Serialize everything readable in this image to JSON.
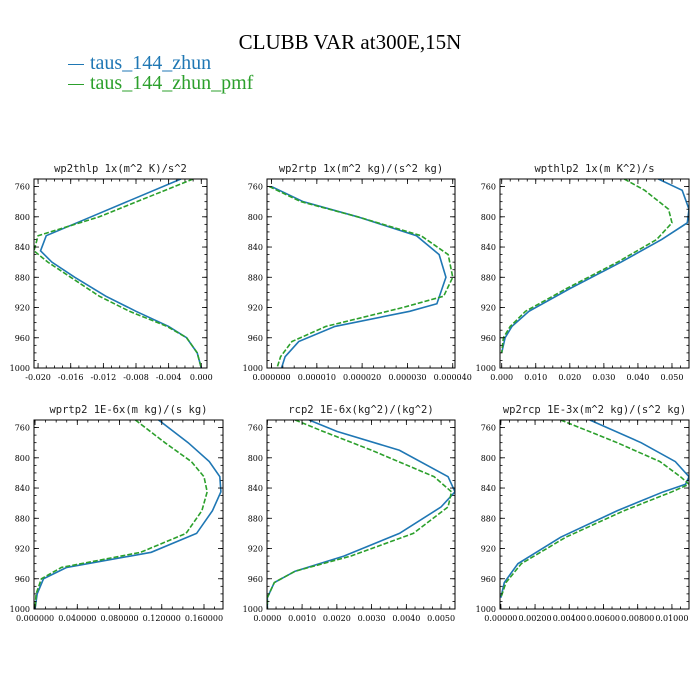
{
  "title": "CLUBB VAR at300E,15N",
  "legend": [
    {
      "name": "taus_144_zhun",
      "color": "#1f77b4"
    },
    {
      "name": "taus_144_zhun_pmf",
      "color": "#2ca02c"
    }
  ],
  "chart_data": [
    {
      "type": "line",
      "title": "wp2thlp  1x(m^2 K)/s^2",
      "xlim": [
        -0.0205,
        0.0007
      ],
      "xticks": [
        -0.02,
        -0.016,
        -0.012,
        -0.008,
        -0.004,
        0.0
      ],
      "xtick_labels": [
        "-0.020",
        "-0.016",
        "-0.012",
        "-0.008",
        "-0.004",
        "0.000"
      ],
      "ylim": [
        1000,
        750
      ],
      "yticks": [
        760,
        800,
        840,
        880,
        920,
        960,
        1000
      ],
      "series": [
        {
          "name": "taus_144_zhun",
          "x": [
            -0.0025,
            -0.0135,
            -0.019,
            -0.0197,
            -0.0183,
            -0.0155,
            -0.0117,
            -0.008,
            -0.004,
            -0.0018,
            -0.0005,
            0.0
          ],
          "y": [
            750,
            800,
            825,
            845,
            860,
            880,
            905,
            925,
            945,
            960,
            980,
            1000
          ]
        },
        {
          "name": "taus_144_zhun_pmf",
          "x": [
            -0.001,
            -0.0125,
            -0.02,
            -0.0205,
            -0.0188,
            -0.016,
            -0.0125,
            -0.0088,
            -0.0042,
            -0.0018,
            -0.0005,
            0.0
          ],
          "y": [
            750,
            800,
            825,
            845,
            860,
            880,
            905,
            925,
            945,
            960,
            980,
            1000
          ]
        }
      ]
    },
    {
      "type": "line",
      "title": "wp2rtp  1x(m^2 kg)/(s^2 kg)",
      "xlim": [
        -1e-06,
        4.05e-05
      ],
      "xticks": [
        0.0,
        1e-05,
        2e-05,
        3e-05,
        4e-05
      ],
      "xtick_labels": [
        "0.000000",
        "0.000010",
        "0.000020",
        "0.000030",
        "0.000040"
      ],
      "ylim": [
        1000,
        750
      ],
      "yticks": [
        760,
        800,
        840,
        880,
        920,
        960,
        1000
      ],
      "series": [
        {
          "name": "taus_144_zhun",
          "x": [
            0.0,
            7e-06,
            1.9e-05,
            3.2e-05,
            3.7e-05,
            3.85e-05,
            3.65e-05,
            3.05e-05,
            1.4e-05,
            6e-06,
            3e-06,
            2.2e-06
          ],
          "y": [
            760,
            780,
            800,
            825,
            850,
            880,
            915,
            925,
            945,
            965,
            985,
            1000
          ]
        },
        {
          "name": "taus_144_zhun_pmf",
          "x": [
            -5e-07,
            6.5e-06,
            1.9e-05,
            3.3e-05,
            3.9e-05,
            4e-05,
            3.8e-05,
            2.9e-05,
            1.2e-05,
            4.5e-06,
            2e-06,
            1.2e-06
          ],
          "y": [
            760,
            780,
            800,
            825,
            850,
            880,
            905,
            920,
            945,
            965,
            985,
            1000
          ]
        }
      ]
    },
    {
      "type": "line",
      "title": "wpthlp2  1x(m K^2)/s",
      "xlim": [
        -0.0005,
        0.055
      ],
      "xticks": [
        0.0,
        0.01,
        0.02,
        0.03,
        0.04,
        0.05
      ],
      "xtick_labels": [
        "0.000",
        "0.010",
        "0.020",
        "0.030",
        "0.040",
        "0.050"
      ],
      "ylim": [
        1000,
        750
      ],
      "yticks": [
        760,
        800,
        840,
        880,
        920,
        960,
        1000
      ],
      "series": [
        {
          "name": "taus_144_zhun",
          "x": [
            0.046,
            0.053,
            0.055,
            0.0545,
            0.047,
            0.035,
            0.02,
            0.008,
            0.003,
            0.001,
            0.0
          ],
          "y": [
            750,
            765,
            790,
            808,
            830,
            860,
            895,
            925,
            945,
            960,
            980
          ]
        },
        {
          "name": "taus_144_zhun_pmf",
          "x": [
            0.036,
            0.042,
            0.049,
            0.05,
            0.0455,
            0.034,
            0.019,
            0.007,
            0.0025,
            0.0005,
            0.0
          ],
          "y": [
            750,
            765,
            790,
            808,
            830,
            860,
            895,
            925,
            945,
            960,
            980
          ]
        }
      ]
    },
    {
      "type": "line",
      "title": "wprtp2  1E-6x(m kg)/(s kg)",
      "xlim": [
        -1e-06,
        0.000178
      ],
      "xticks": [
        0.0,
        4e-05,
        8e-05,
        0.00012,
        0.00016
      ],
      "xtick_labels": [
        "0.000000",
        "0.040000",
        "0.080000",
        "0.120000",
        "0.160000"
      ],
      "ylim": [
        1000,
        750
      ],
      "yticks": [
        760,
        800,
        840,
        880,
        920,
        960,
        1000
      ],
      "series": [
        {
          "name": "taus_144_zhun",
          "x": [
            0.000117,
            0.000145,
            0.000165,
            0.000175,
            0.000176,
            0.000168,
            0.000153,
            0.00011,
            3e-05,
            8e-06,
            2e-06,
            0.0
          ],
          "y": [
            750,
            780,
            805,
            825,
            845,
            870,
            900,
            925,
            945,
            960,
            980,
            1000
          ]
        },
        {
          "name": "taus_144_zhun_pmf",
          "x": [
            9.5e-05,
            0.000123,
            0.000148,
            0.00016,
            0.000163,
            0.000158,
            0.000143,
            0.0001,
            2.5e-05,
            6e-06,
            1e-06,
            0.0
          ],
          "y": [
            750,
            780,
            805,
            825,
            845,
            870,
            900,
            925,
            945,
            960,
            980,
            1000
          ]
        }
      ]
    },
    {
      "type": "line",
      "title": "rcp2  1E-6x(kg^2)/(kg^2)",
      "xlim": [
        -1e-05,
        0.0054
      ],
      "xticks": [
        0.0,
        0.001,
        0.002,
        0.003,
        0.004,
        0.005
      ],
      "xtick_labels": [
        "0.0000",
        "0.0010",
        "0.0020",
        "0.0030",
        "0.0040",
        "0.0050"
      ],
      "ylim": [
        1000,
        750
      ],
      "yticks": [
        760,
        800,
        840,
        880,
        920,
        960,
        1000
      ],
      "series": [
        {
          "name": "taus_144_zhun",
          "x": [
            0.0012,
            0.002,
            0.0038,
            0.0052,
            0.0054,
            0.005,
            0.0038,
            0.0022,
            0.0008,
            0.0002,
            0.0,
            0.0
          ],
          "y": [
            750,
            765,
            790,
            825,
            845,
            865,
            900,
            930,
            950,
            965,
            985,
            1000
          ]
        },
        {
          "name": "taus_144_zhun_pmf",
          "x": [
            0.0008,
            0.0016,
            0.003,
            0.0048,
            0.0053,
            0.0052,
            0.0042,
            0.0024,
            0.0008,
            0.0002,
            0.0,
            0.0
          ],
          "y": [
            750,
            765,
            790,
            825,
            845,
            865,
            900,
            930,
            950,
            965,
            985,
            1000
          ]
        }
      ]
    },
    {
      "type": "line",
      "title": "wp2rcp  1E-3x(m^2 kg)/(s^2 kg)",
      "xlim": [
        -5e-05,
        0.011
      ],
      "xticks": [
        0.0,
        0.002,
        0.004,
        0.006,
        0.008,
        0.01
      ],
      "xtick_labels": [
        "0.00000",
        "0.00200",
        "0.00400",
        "0.00600",
        "0.00800",
        "0.01000"
      ],
      "ylim": [
        1000,
        750
      ],
      "yticks": [
        760,
        800,
        840,
        880,
        920,
        960,
        1000
      ],
      "series": [
        {
          "name": "taus_144_zhun",
          "x": [
            0.0052,
            0.0082,
            0.0102,
            0.011,
            0.0108,
            0.0095,
            0.0068,
            0.0035,
            0.001,
            0.0002,
            0.0
          ],
          "y": [
            750,
            780,
            805,
            825,
            835,
            845,
            870,
            905,
            940,
            965,
            985
          ]
        },
        {
          "name": "taus_144_zhun_pmf",
          "x": [
            0.0035,
            0.0068,
            0.0093,
            0.0105,
            0.011,
            0.01,
            0.0072,
            0.0038,
            0.0012,
            0.0003,
            0.0
          ],
          "y": [
            750,
            780,
            805,
            825,
            835,
            845,
            870,
            905,
            940,
            965,
            985
          ]
        }
      ]
    }
  ]
}
